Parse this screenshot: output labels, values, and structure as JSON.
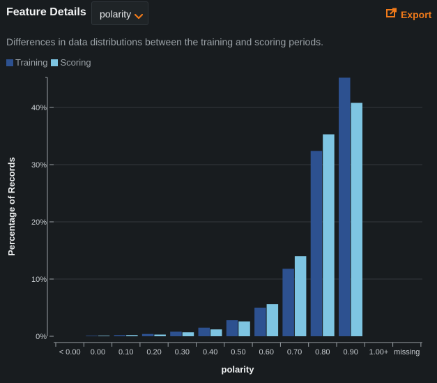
{
  "header": {
    "title": "Feature Details",
    "feature_selector": "polarity",
    "export_label": "Export"
  },
  "subtitle": "Differences in data distributions between the training and scoring periods.",
  "colors": {
    "training": "#2d5190",
    "scoring": "#7ec5e2",
    "accent": "#f07a1a",
    "grid": "#33393e",
    "axis": "#9aa1a6"
  },
  "chart_data": {
    "type": "bar",
    "xlabel": "polarity",
    "ylabel": "Percentage of Records",
    "categories": [
      "< 0.00",
      "0.00",
      "0.10",
      "0.20",
      "0.30",
      "0.40",
      "0.50",
      "0.60",
      "0.70",
      "0.80",
      "0.90",
      "1.00+",
      "missing"
    ],
    "yticks": [
      "0%",
      "10%",
      "20%",
      "30%",
      "40%"
    ],
    "ylim": [
      0,
      45
    ],
    "legend": "top-left",
    "series": [
      {
        "name": "Training",
        "color": "#2d5190",
        "values": [
          0,
          0.1,
          0.2,
          0.4,
          0.8,
          1.5,
          2.8,
          5.0,
          11.8,
          32.4,
          45.2,
          0,
          0
        ]
      },
      {
        "name": "Scoring",
        "color": "#7ec5e2",
        "values": [
          0,
          0.1,
          0.2,
          0.3,
          0.7,
          1.2,
          2.6,
          5.6,
          14.0,
          35.3,
          40.8,
          0,
          0
        ]
      }
    ]
  }
}
